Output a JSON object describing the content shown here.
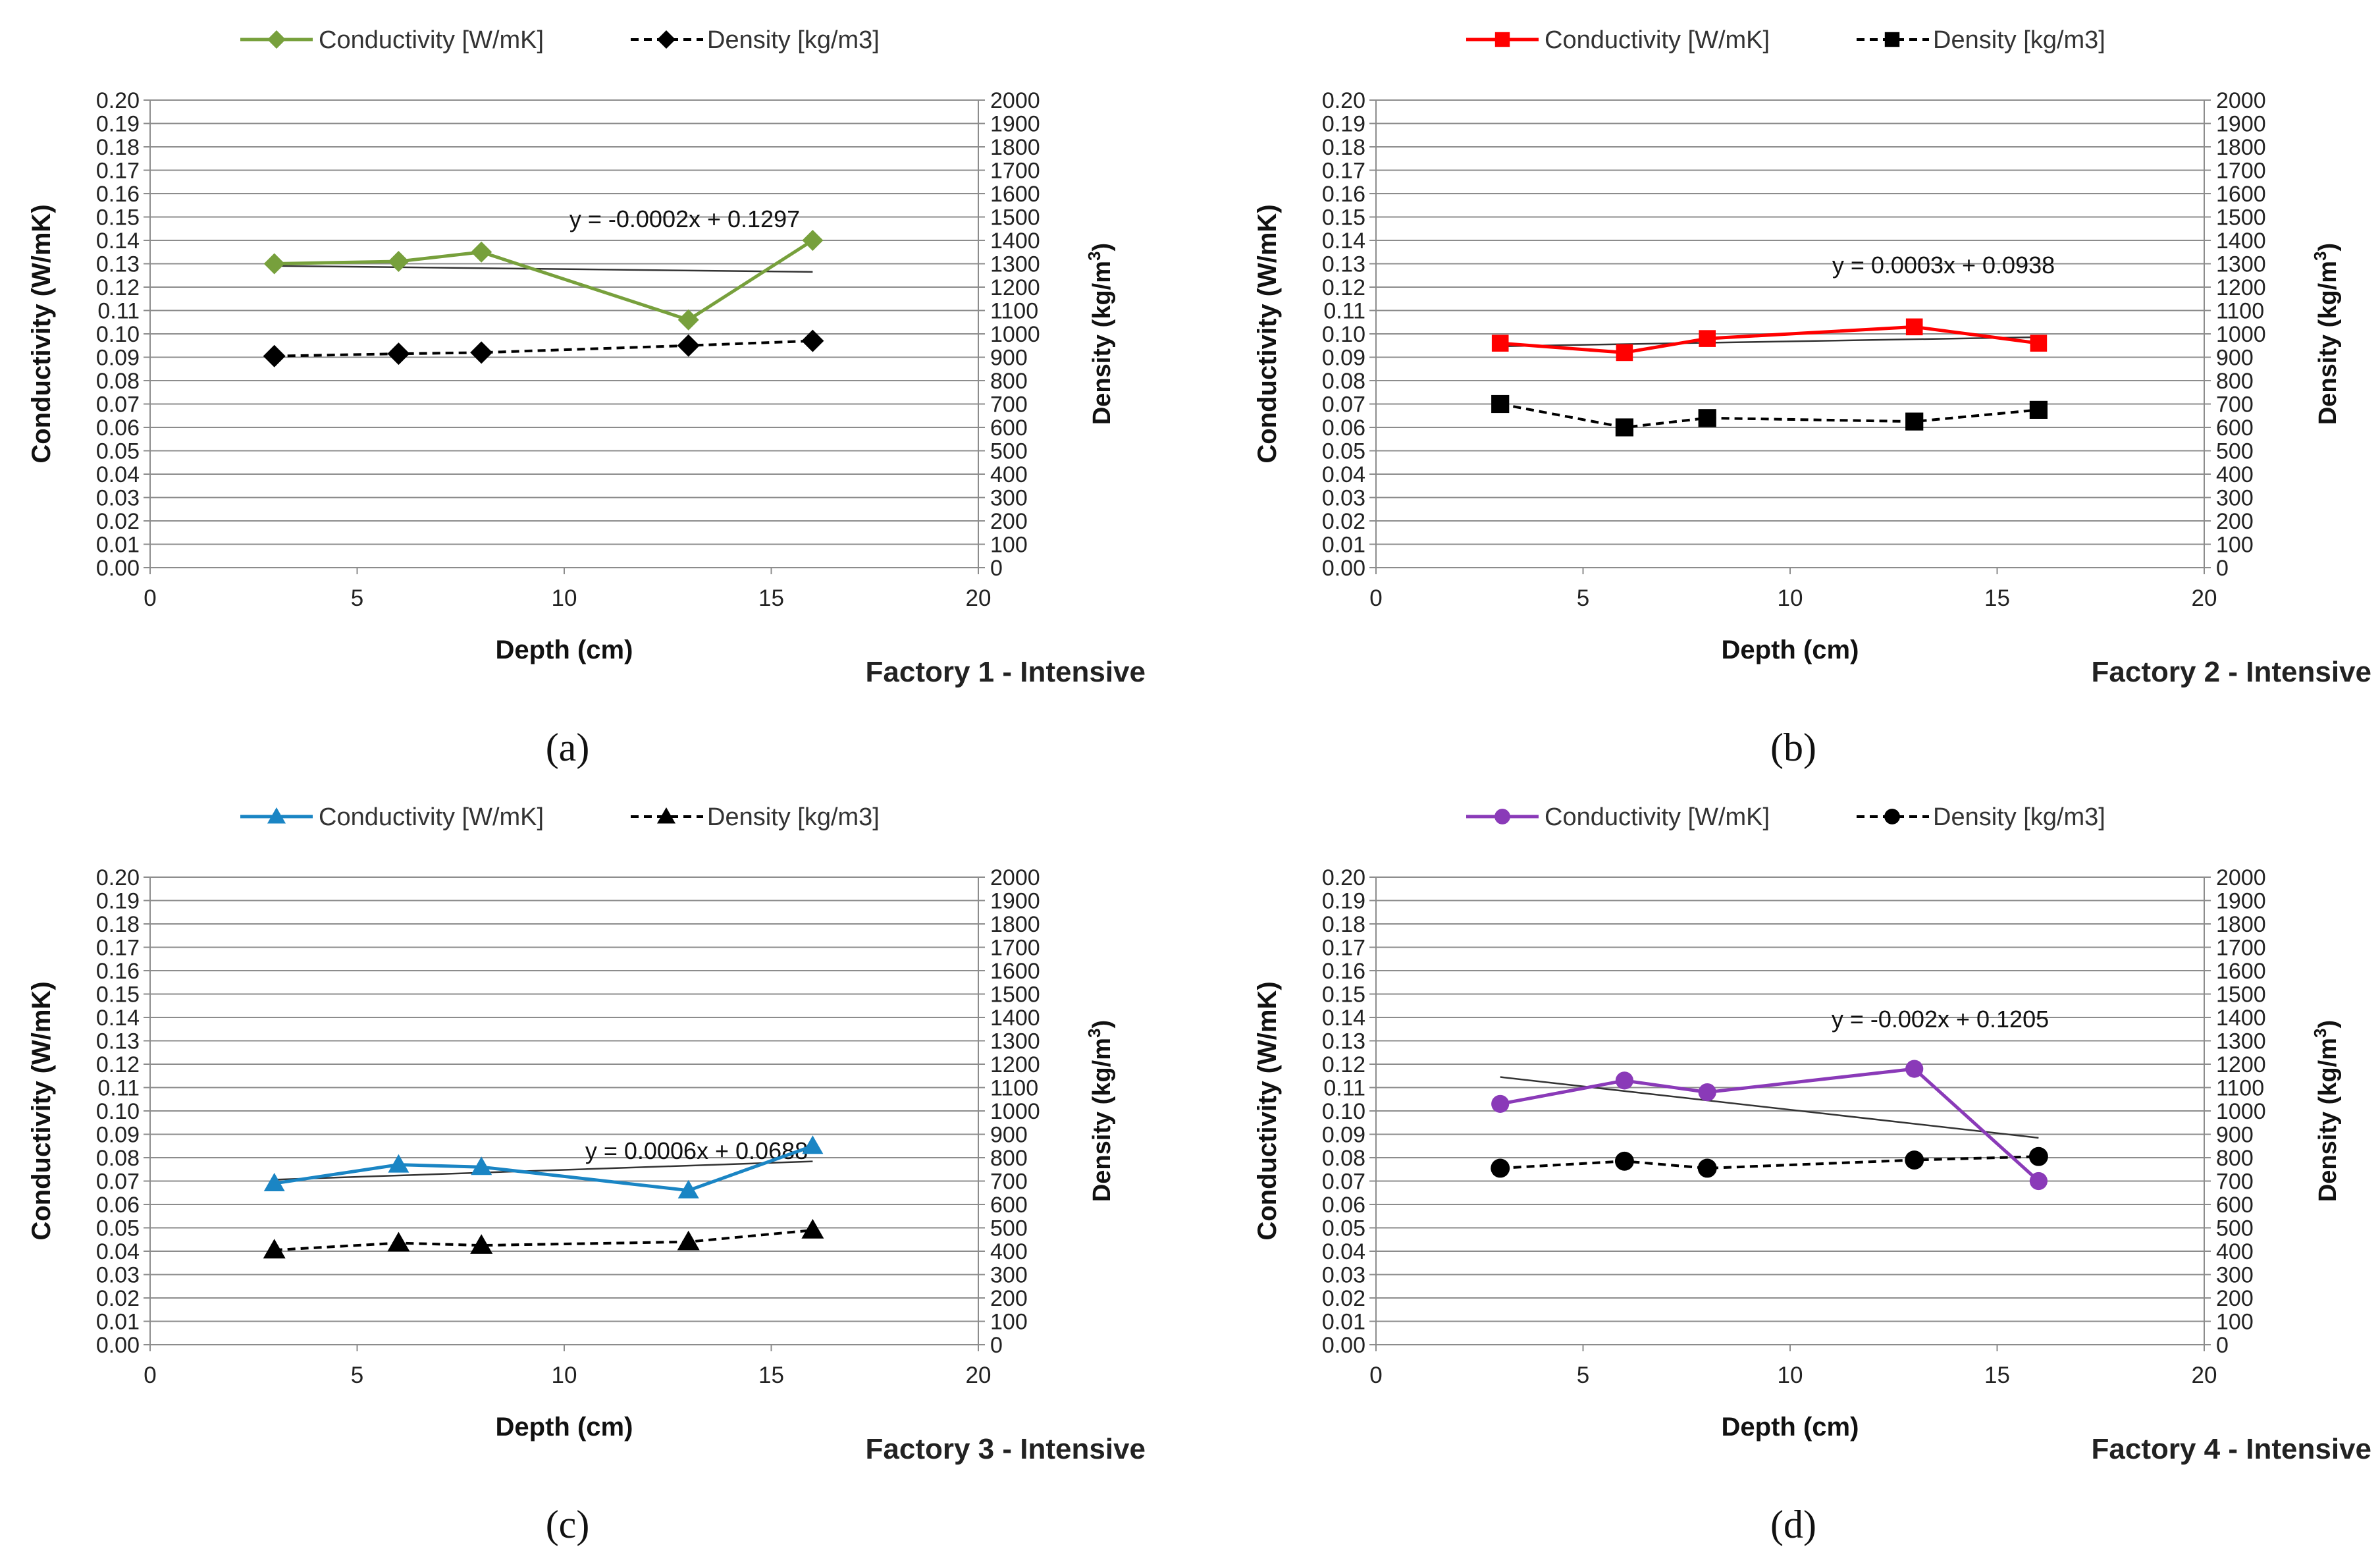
{
  "chart_data": [
    {
      "type": "line",
      "panel_label": "(a)",
      "factory_label": "Factory 1 - Intensive",
      "xlabel": "Depth (cm)",
      "ylabel": "Conductivity (W/mK)",
      "y2label": "Density (kg/m3)",
      "xlim": [
        0,
        20
      ],
      "ylim": [
        0,
        0.2
      ],
      "y2lim": [
        0,
        2000
      ],
      "x_ticks": [
        "0",
        "5",
        "10",
        "15",
        "20"
      ],
      "y_ticks": [
        "0.00",
        "0.01",
        "0.02",
        "0.03",
        "0.04",
        "0.05",
        "0.06",
        "0.07",
        "0.08",
        "0.09",
        "0.10",
        "0.11",
        "0.12",
        "0.13",
        "0.14",
        "0.15",
        "0.16",
        "0.17",
        "0.18",
        "0.19",
        "0.20"
      ],
      "y2_ticks": [
        "0",
        "100",
        "200",
        "300",
        "400",
        "500",
        "600",
        "700",
        "800",
        "900",
        "1000",
        "1100",
        "1200",
        "1300",
        "1400",
        "1500",
        "1600",
        "1700",
        "1800",
        "1900",
        "2000"
      ],
      "marker": "diamond",
      "color": "#77a03c",
      "x": [
        3,
        6,
        8,
        13,
        16
      ],
      "series": [
        {
          "name": "Conductivity [W/mK]",
          "axis": "left",
          "values": [
            0.13,
            0.131,
            0.135,
            0.106,
            0.14
          ]
        },
        {
          "name": "Density [kg/m3]",
          "axis": "right",
          "values": [
            905,
            915,
            920,
            950,
            970
          ]
        }
      ],
      "trendline": {
        "equation": "y = -0.0002x + 0.1297",
        "slope": -0.0002,
        "intercept": 0.1297,
        "x_range": [
          3,
          16
        ]
      }
    },
    {
      "type": "line",
      "panel_label": "(b)",
      "factory_label": "Factory 2 - Intensive",
      "xlabel": "Depth (cm)",
      "ylabel": "Conductivity (W/mK)",
      "y2label": "Density (kg/m3)",
      "xlim": [
        0,
        20
      ],
      "ylim": [
        0,
        0.2
      ],
      "y2lim": [
        0,
        2000
      ],
      "x_ticks": [
        "0",
        "5",
        "10",
        "15",
        "20"
      ],
      "y_ticks": [
        "0.00",
        "0.01",
        "0.02",
        "0.03",
        "0.04",
        "0.05",
        "0.06",
        "0.07",
        "0.08",
        "0.09",
        "0.10",
        "0.11",
        "0.12",
        "0.13",
        "0.14",
        "0.15",
        "0.16",
        "0.17",
        "0.18",
        "0.19",
        "0.20"
      ],
      "y2_ticks": [
        "0",
        "100",
        "200",
        "300",
        "400",
        "500",
        "600",
        "700",
        "800",
        "900",
        "1000",
        "1100",
        "1200",
        "1300",
        "1400",
        "1500",
        "1600",
        "1700",
        "1800",
        "1900",
        "2000"
      ],
      "marker": "square",
      "color": "#ff0000",
      "x": [
        3,
        6,
        8,
        13,
        16
      ],
      "series": [
        {
          "name": "Conductivity [W/mK]",
          "axis": "left",
          "values": [
            0.096,
            0.092,
            0.098,
            0.103,
            0.096
          ]
        },
        {
          "name": "Density [kg/m3]",
          "axis": "right",
          "values": [
            700,
            600,
            640,
            625,
            675
          ]
        }
      ],
      "trendline": {
        "equation": "y = 0.0003x + 0.0938",
        "slope": 0.0003,
        "intercept": 0.0938,
        "x_range": [
          3,
          16
        ]
      }
    },
    {
      "type": "line",
      "panel_label": "(c)",
      "factory_label": "Factory 3 - Intensive",
      "xlabel": "Depth (cm)",
      "ylabel": "Conductivity (W/mK)",
      "y2label": "Density (kg/m3)",
      "xlim": [
        0,
        20
      ],
      "ylim": [
        0,
        0.2
      ],
      "y2lim": [
        0,
        2000
      ],
      "x_ticks": [
        "0",
        "5",
        "10",
        "15",
        "20"
      ],
      "y_ticks": [
        "0.00",
        "0.01",
        "0.02",
        "0.03",
        "0.04",
        "0.05",
        "0.06",
        "0.07",
        "0.08",
        "0.09",
        "0.10",
        "0.11",
        "0.12",
        "0.13",
        "0.14",
        "0.15",
        "0.16",
        "0.17",
        "0.18",
        "0.19",
        "0.20"
      ],
      "y2_ticks": [
        "0",
        "100",
        "200",
        "300",
        "400",
        "500",
        "600",
        "700",
        "800",
        "900",
        "1000",
        "1100",
        "1200",
        "1300",
        "1400",
        "1500",
        "1600",
        "1700",
        "1800",
        "1900",
        "2000"
      ],
      "marker": "triangle",
      "color": "#1a85c4",
      "x": [
        3,
        6,
        8,
        13,
        16
      ],
      "series": [
        {
          "name": "Conductivity [W/mK]",
          "axis": "left",
          "values": [
            0.069,
            0.077,
            0.076,
            0.066,
            0.085
          ]
        },
        {
          "name": "Density [kg/m3]",
          "axis": "right",
          "values": [
            405,
            435,
            425,
            440,
            490
          ]
        }
      ],
      "trendline": {
        "equation": "y = 0.0006x + 0.0688",
        "slope": 0.0006,
        "intercept": 0.0688,
        "x_range": [
          3,
          16
        ]
      }
    },
    {
      "type": "line",
      "panel_label": "(d)",
      "factory_label": "Factory 4 - Intensive",
      "xlabel": "Depth (cm)",
      "ylabel": "Conductivity (W/mK)",
      "y2label": "Density (kg/m3)",
      "xlim": [
        0,
        20
      ],
      "ylim": [
        0,
        0.2
      ],
      "y2lim": [
        0,
        2000
      ],
      "x_ticks": [
        "0",
        "5",
        "10",
        "15",
        "20"
      ],
      "y_ticks": [
        "0.00",
        "0.01",
        "0.02",
        "0.03",
        "0.04",
        "0.05",
        "0.06",
        "0.07",
        "0.08",
        "0.09",
        "0.10",
        "0.11",
        "0.12",
        "0.13",
        "0.14",
        "0.15",
        "0.16",
        "0.17",
        "0.18",
        "0.19",
        "0.20"
      ],
      "y2_ticks": [
        "0",
        "100",
        "200",
        "300",
        "400",
        "500",
        "600",
        "700",
        "800",
        "900",
        "1000",
        "1100",
        "1200",
        "1300",
        "1400",
        "1500",
        "1600",
        "1700",
        "1800",
        "1900",
        "2000"
      ],
      "marker": "circle",
      "color": "#8a3ab8",
      "x": [
        3,
        6,
        8,
        13,
        16
      ],
      "series": [
        {
          "name": "Conductivity [W/mK]",
          "axis": "left",
          "values": [
            0.103,
            0.113,
            0.108,
            0.118,
            0.07
          ]
        },
        {
          "name": "Density [kg/m3]",
          "axis": "right",
          "values": [
            755,
            785,
            755,
            790,
            805
          ]
        }
      ],
      "trendline": {
        "equation": "y = -0.002x + 0.1205",
        "slope": -0.002,
        "intercept": 0.1205,
        "x_range": [
          3,
          16
        ]
      }
    }
  ]
}
